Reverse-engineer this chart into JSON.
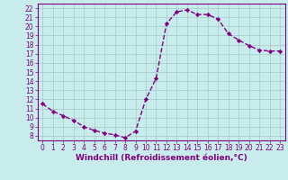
{
  "x": [
    0,
    1,
    2,
    3,
    4,
    5,
    6,
    7,
    8,
    9,
    10,
    11,
    12,
    13,
    14,
    15,
    16,
    17,
    18,
    19,
    20,
    21,
    22,
    23
  ],
  "y": [
    11.5,
    10.7,
    10.2,
    9.7,
    9.0,
    8.6,
    8.3,
    8.1,
    7.8,
    8.5,
    12.0,
    14.3,
    20.3,
    21.6,
    21.8,
    21.3,
    21.3,
    20.8,
    19.2,
    18.5,
    17.9,
    17.4,
    17.3,
    17.3
  ],
  "line_color": "#800080",
  "marker": "D",
  "marker_size": 2.2,
  "bg_color": "#c8ecec",
  "grid_color": "#aacccc",
  "xlabel": "Windchill (Refroidissement éolien,°C)",
  "xlim": [
    -0.5,
    23.5
  ],
  "ylim": [
    7.5,
    22.5
  ],
  "yticks": [
    8,
    9,
    10,
    11,
    12,
    13,
    14,
    15,
    16,
    17,
    18,
    19,
    20,
    21,
    22
  ],
  "xticks": [
    0,
    1,
    2,
    3,
    4,
    5,
    6,
    7,
    8,
    9,
    10,
    11,
    12,
    13,
    14,
    15,
    16,
    17,
    18,
    19,
    20,
    21,
    22,
    23
  ],
  "tick_label_color": "#800080",
  "tick_label_size": 5.5,
  "xlabel_size": 6.5,
  "spine_color": "#800080",
  "linewidth": 1.0,
  "linestyle": "--"
}
